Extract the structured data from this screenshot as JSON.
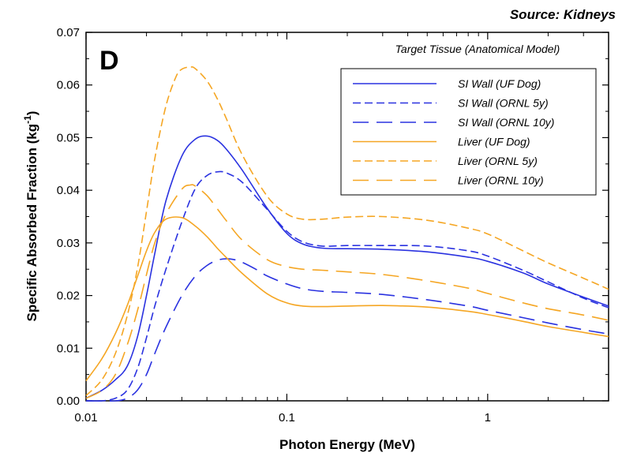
{
  "source_label": "Source: Kidneys",
  "panel_letter": "D",
  "chart_data": {
    "type": "line",
    "xscale": "log",
    "xlim": [
      0.01,
      4
    ],
    "ylim": [
      0,
      0.07
    ],
    "xticks": [
      0.01,
      0.1,
      1
    ],
    "xtick_labels": [
      "0.01",
      "0.1",
      "1"
    ],
    "yticks": [
      0,
      0.01,
      0.02,
      0.03,
      0.04,
      0.05,
      0.06,
      0.07
    ],
    "ytick_labels": [
      "0.00",
      "0.01",
      "0.02",
      "0.03",
      "0.04",
      "0.05",
      "0.06",
      "0.07"
    ],
    "xlabel": "Photon Energy (MeV)",
    "ylabel": "Specific Absorbed Fraction (kg",
    "ylabel_sup": "-1",
    "ylabel_tail": ")",
    "legend_title": "Target Tissue (Anatomical Model)",
    "legend_position": "top-right",
    "grid": false,
    "colors": {
      "blue": "#2a32e0",
      "orange": "#f5a623"
    },
    "series": [
      {
        "name": "SI Wall (UF Dog)",
        "color": "#2a32e0",
        "dash": "solid",
        "x": [
          0.01,
          0.012,
          0.014,
          0.016,
          0.018,
          0.02,
          0.022,
          0.025,
          0.03,
          0.035,
          0.04,
          0.045,
          0.05,
          0.06,
          0.08,
          0.1,
          0.12,
          0.15,
          0.2,
          0.3,
          0.5,
          0.8,
          1,
          1.5,
          2,
          3,
          4
        ],
        "y": [
          0.0005,
          0.002,
          0.004,
          0.0065,
          0.012,
          0.02,
          0.028,
          0.038,
          0.0465,
          0.0497,
          0.0503,
          0.0495,
          0.0478,
          0.0438,
          0.0365,
          0.0318,
          0.0298,
          0.029,
          0.0289,
          0.0288,
          0.0283,
          0.0273,
          0.0265,
          0.0243,
          0.0222,
          0.0197,
          0.018
        ]
      },
      {
        "name": "SI Wall (ORNL 5y)",
        "color": "#2a32e0",
        "dash": "short",
        "x": [
          0.01,
          0.012,
          0.014,
          0.016,
          0.018,
          0.02,
          0.022,
          0.025,
          0.03,
          0.035,
          0.04,
          0.045,
          0.05,
          0.06,
          0.08,
          0.1,
          0.12,
          0.15,
          0.2,
          0.3,
          0.5,
          0.8,
          1,
          1.5,
          2,
          3,
          4
        ],
        "y": [
          0,
          0,
          0.0005,
          0.002,
          0.006,
          0.012,
          0.018,
          0.025,
          0.034,
          0.0403,
          0.0428,
          0.0435,
          0.0433,
          0.0415,
          0.0363,
          0.0322,
          0.0302,
          0.0294,
          0.0295,
          0.0295,
          0.0294,
          0.0285,
          0.0275,
          0.0248,
          0.0226,
          0.0195,
          0.0177
        ]
      },
      {
        "name": "SI Wall (ORNL 10y)",
        "color": "#2a32e0",
        "dash": "long",
        "x": [
          0.01,
          0.014,
          0.016,
          0.018,
          0.02,
          0.022,
          0.025,
          0.03,
          0.035,
          0.04,
          0.045,
          0.05,
          0.055,
          0.06,
          0.07,
          0.08,
          0.1,
          0.12,
          0.15,
          0.2,
          0.3,
          0.5,
          0.8,
          1,
          1.5,
          2,
          3,
          4
        ],
        "y": [
          0,
          0,
          0.0005,
          0.002,
          0.005,
          0.009,
          0.014,
          0.02,
          0.0237,
          0.0257,
          0.0267,
          0.027,
          0.0268,
          0.0263,
          0.025,
          0.0237,
          0.0222,
          0.0213,
          0.0208,
          0.0206,
          0.0202,
          0.0192,
          0.018,
          0.0172,
          0.0158,
          0.0148,
          0.0135,
          0.0127
        ]
      },
      {
        "name": "Liver (UF Dog)",
        "color": "#f5a623",
        "dash": "solid",
        "x": [
          0.01,
          0.012,
          0.014,
          0.016,
          0.018,
          0.02,
          0.022,
          0.025,
          0.03,
          0.035,
          0.04,
          0.045,
          0.05,
          0.06,
          0.08,
          0.1,
          0.12,
          0.15,
          0.2,
          0.3,
          0.5,
          0.8,
          1,
          1.5,
          2,
          3,
          4
        ],
        "y": [
          0.0038,
          0.008,
          0.0128,
          0.018,
          0.0235,
          0.0285,
          0.032,
          0.0345,
          0.0348,
          0.0332,
          0.0312,
          0.029,
          0.0272,
          0.0242,
          0.0203,
          0.0186,
          0.018,
          0.0179,
          0.018,
          0.0181,
          0.0178,
          0.017,
          0.0164,
          0.0151,
          0.0141,
          0.013,
          0.0122
        ]
      },
      {
        "name": "Liver (ORNL 5y)",
        "color": "#f5a623",
        "dash": "short",
        "x": [
          0.01,
          0.012,
          0.014,
          0.016,
          0.018,
          0.02,
          0.022,
          0.025,
          0.028,
          0.03,
          0.033,
          0.035,
          0.04,
          0.045,
          0.05,
          0.06,
          0.08,
          0.1,
          0.12,
          0.15,
          0.2,
          0.3,
          0.5,
          0.8,
          1,
          1.5,
          2,
          3,
          4
        ],
        "y": [
          0.001,
          0.004,
          0.009,
          0.016,
          0.025,
          0.036,
          0.046,
          0.056,
          0.0615,
          0.063,
          0.0634,
          0.0631,
          0.0608,
          0.0574,
          0.0536,
          0.0467,
          0.0388,
          0.0355,
          0.0345,
          0.0345,
          0.0349,
          0.035,
          0.0343,
          0.0328,
          0.0317,
          0.0285,
          0.0262,
          0.0233,
          0.0212
        ]
      },
      {
        "name": "Liver (ORNL 10y)",
        "color": "#f5a623",
        "dash": "long",
        "x": [
          0.01,
          0.012,
          0.014,
          0.016,
          0.018,
          0.02,
          0.022,
          0.025,
          0.03,
          0.033,
          0.035,
          0.04,
          0.045,
          0.05,
          0.06,
          0.08,
          0.1,
          0.12,
          0.15,
          0.2,
          0.3,
          0.5,
          0.8,
          1,
          1.5,
          2,
          3,
          4
        ],
        "y": [
          0.0005,
          0.002,
          0.005,
          0.0105,
          0.017,
          0.024,
          0.03,
          0.0355,
          0.0402,
          0.041,
          0.0408,
          0.039,
          0.0365,
          0.0342,
          0.0305,
          0.0268,
          0.0255,
          0.025,
          0.0248,
          0.0245,
          0.024,
          0.0228,
          0.0214,
          0.0204,
          0.0186,
          0.0175,
          0.0163,
          0.0153
        ]
      }
    ]
  }
}
